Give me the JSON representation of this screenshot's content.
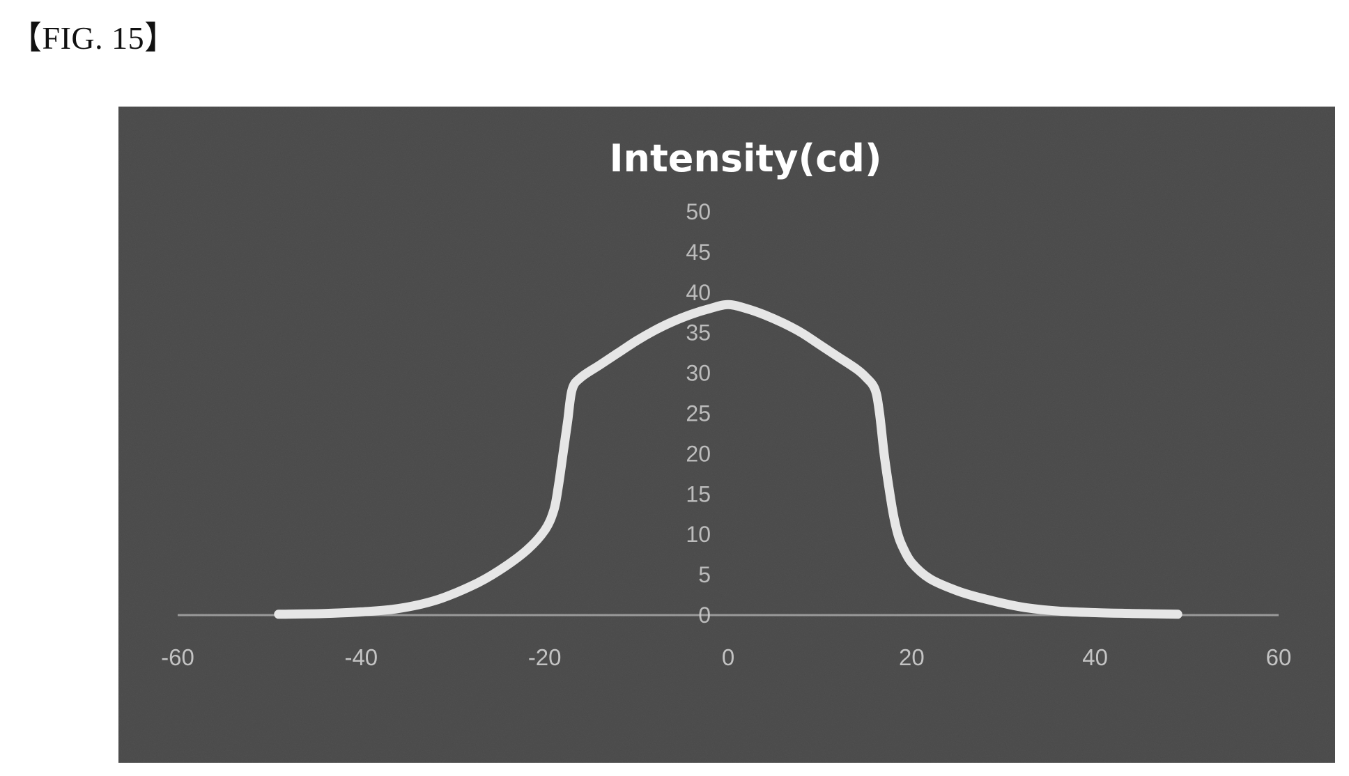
{
  "figure_label": "【FIG. 15】",
  "colors": {
    "panel_background": "#505050",
    "curve": "#e6e6e6",
    "tick_text": "#d0d0d0",
    "title_text": "#ffffff",
    "axis_line": "#9a9a9a"
  },
  "chart_data": {
    "type": "line",
    "title": "Intensity(cd)",
    "xlabel": "",
    "ylabel": "",
    "xlim": [
      -60,
      60
    ],
    "ylim": [
      0,
      50
    ],
    "x_ticks": [
      -60,
      -40,
      -20,
      0,
      20,
      40,
      60
    ],
    "y_ticks": [
      0,
      5,
      10,
      15,
      20,
      25,
      30,
      35,
      40,
      45,
      50
    ],
    "grid": false,
    "legend": "none",
    "series": [
      {
        "x": [
          -49,
          -44,
          -40,
          -36,
          -32,
          -28,
          -25,
          -22,
          -20,
          -19,
          -18.5,
          -18,
          -17.5,
          -17,
          -16,
          -14,
          -12,
          -10,
          -8,
          -6,
          -4,
          -2,
          0,
          2,
          4,
          6,
          8,
          10,
          12,
          14,
          15,
          16,
          16.5,
          17,
          17.5,
          18,
          18.5,
          19,
          20,
          22,
          25,
          28,
          32,
          36,
          40,
          44,
          49
        ],
        "y": [
          0.1,
          0.2,
          0.4,
          0.8,
          1.8,
          3.6,
          5.5,
          8.0,
          10.5,
          13.0,
          16.0,
          20.0,
          24.0,
          28.0,
          29.5,
          31.0,
          32.5,
          34.0,
          35.3,
          36.4,
          37.3,
          38.0,
          38.5,
          38.0,
          37.2,
          36.2,
          35.0,
          33.5,
          32.0,
          30.5,
          29.5,
          28.0,
          25.0,
          20.0,
          16.0,
          12.5,
          10.0,
          8.5,
          6.5,
          4.5,
          3.0,
          2.0,
          1.0,
          0.5,
          0.3,
          0.2,
          0.1
        ]
      }
    ]
  }
}
